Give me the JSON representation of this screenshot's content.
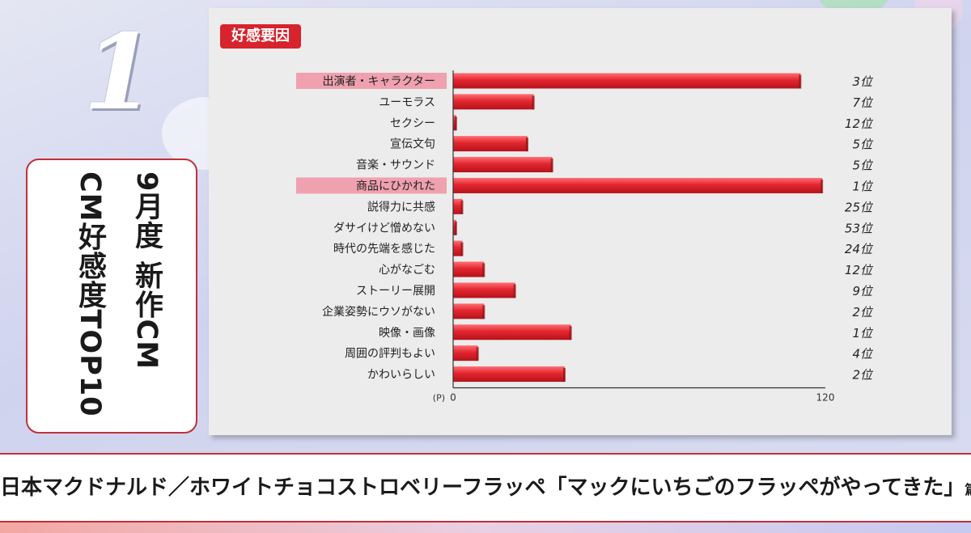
{
  "rank": "1",
  "title_box": {
    "line1": "9月度 新作CM",
    "line2": "CM好感度TOP10"
  },
  "chart_data": {
    "type": "bar",
    "orientation": "horizontal",
    "title": "好感要因",
    "x_axis_unit": "(P)",
    "xlim": [
      0,
      120
    ],
    "x_ticks": [
      "0",
      "120"
    ],
    "grid": false,
    "categories": [
      "出演者・キャラクター",
      "ユーモラス",
      "セクシー",
      "宣伝文句",
      "音楽・サウンド",
      "商品にひかれた",
      "説得力に共感",
      "ダサイけど憎めない",
      "時代の先端を感じた",
      "心がなごむ",
      "ストーリー展開",
      "企業姿勢にウソがない",
      "映像・画像",
      "周囲の評判もよい",
      "かわいらしい"
    ],
    "values": [
      112,
      26,
      1,
      24,
      32,
      119,
      3,
      1,
      3,
      10,
      20,
      10,
      38,
      8,
      36
    ],
    "ranks": [
      "3位",
      "7位",
      "12位",
      "5位",
      "5位",
      "1位",
      "25位",
      "53位",
      "24位",
      "12位",
      "9位",
      "2位",
      "1位",
      "4位",
      "2位"
    ],
    "highlighted": [
      0,
      5
    ],
    "colors": {
      "bar": "#e3262f",
      "highlight_label": "#f08fa0",
      "header": "#d7232c"
    }
  },
  "caption": {
    "main": "日本マクドナルド／ホワイトチョコストロベリーフラッペ「マックにいちごのフラッペがやってきた」",
    "suffix": "篇"
  }
}
